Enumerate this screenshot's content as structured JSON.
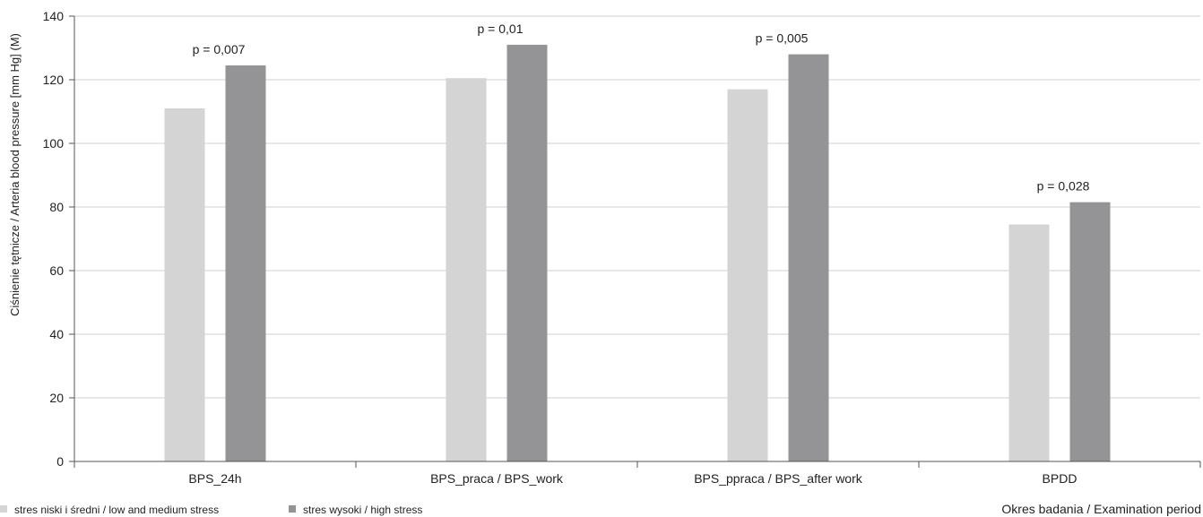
{
  "chart_data": {
    "type": "bar",
    "categories": [
      "BPS_24h",
      "BPS_praca / BPS_work",
      "BPS_ppraca / BPS_after work",
      "BPDD"
    ],
    "series": [
      {
        "name": "stres niski i średni / low and medium stress",
        "values": [
          111,
          120.5,
          117,
          74.5
        ],
        "color": "#d4d4d4"
      },
      {
        "name": "stres wysoki / high stress",
        "values": [
          124.5,
          131,
          128,
          81.5
        ],
        "color": "#949497"
      }
    ],
    "annotations": [
      "p = 0,007",
      "p = 0,01",
      "p = 0,005",
      "p = 0,028"
    ],
    "ylabel": "Ciśnienie tętnicze / Arteria blood pressure [mm Hg] (M)",
    "xlabel": "Okres badania / Examination period",
    "ylim": [
      0,
      140
    ],
    "yticks": [
      0,
      20,
      40,
      60,
      80,
      100,
      120,
      140
    ],
    "grid": true,
    "legend_position": "bottom-left"
  }
}
